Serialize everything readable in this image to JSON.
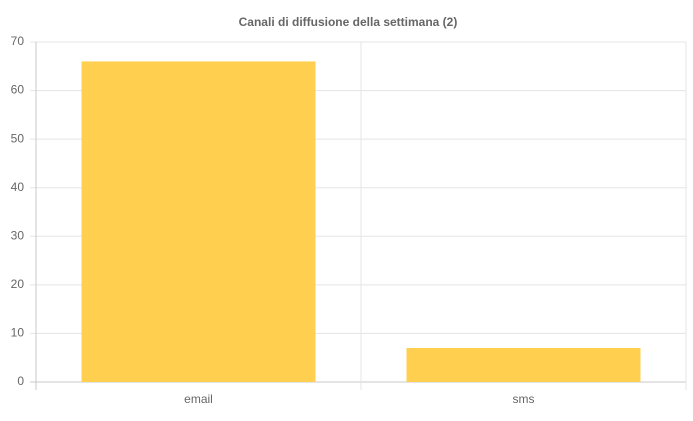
{
  "chart_data": {
    "type": "bar",
    "title": "Canali di diffusione della settimana (2)",
    "categories": [
      "email",
      "sms"
    ],
    "values": [
      66,
      7
    ],
    "color": "#ffcf50",
    "ylim": [
      0,
      70
    ],
    "yticks": [
      0,
      10,
      20,
      30,
      40,
      50,
      60,
      70
    ],
    "grid": true
  }
}
